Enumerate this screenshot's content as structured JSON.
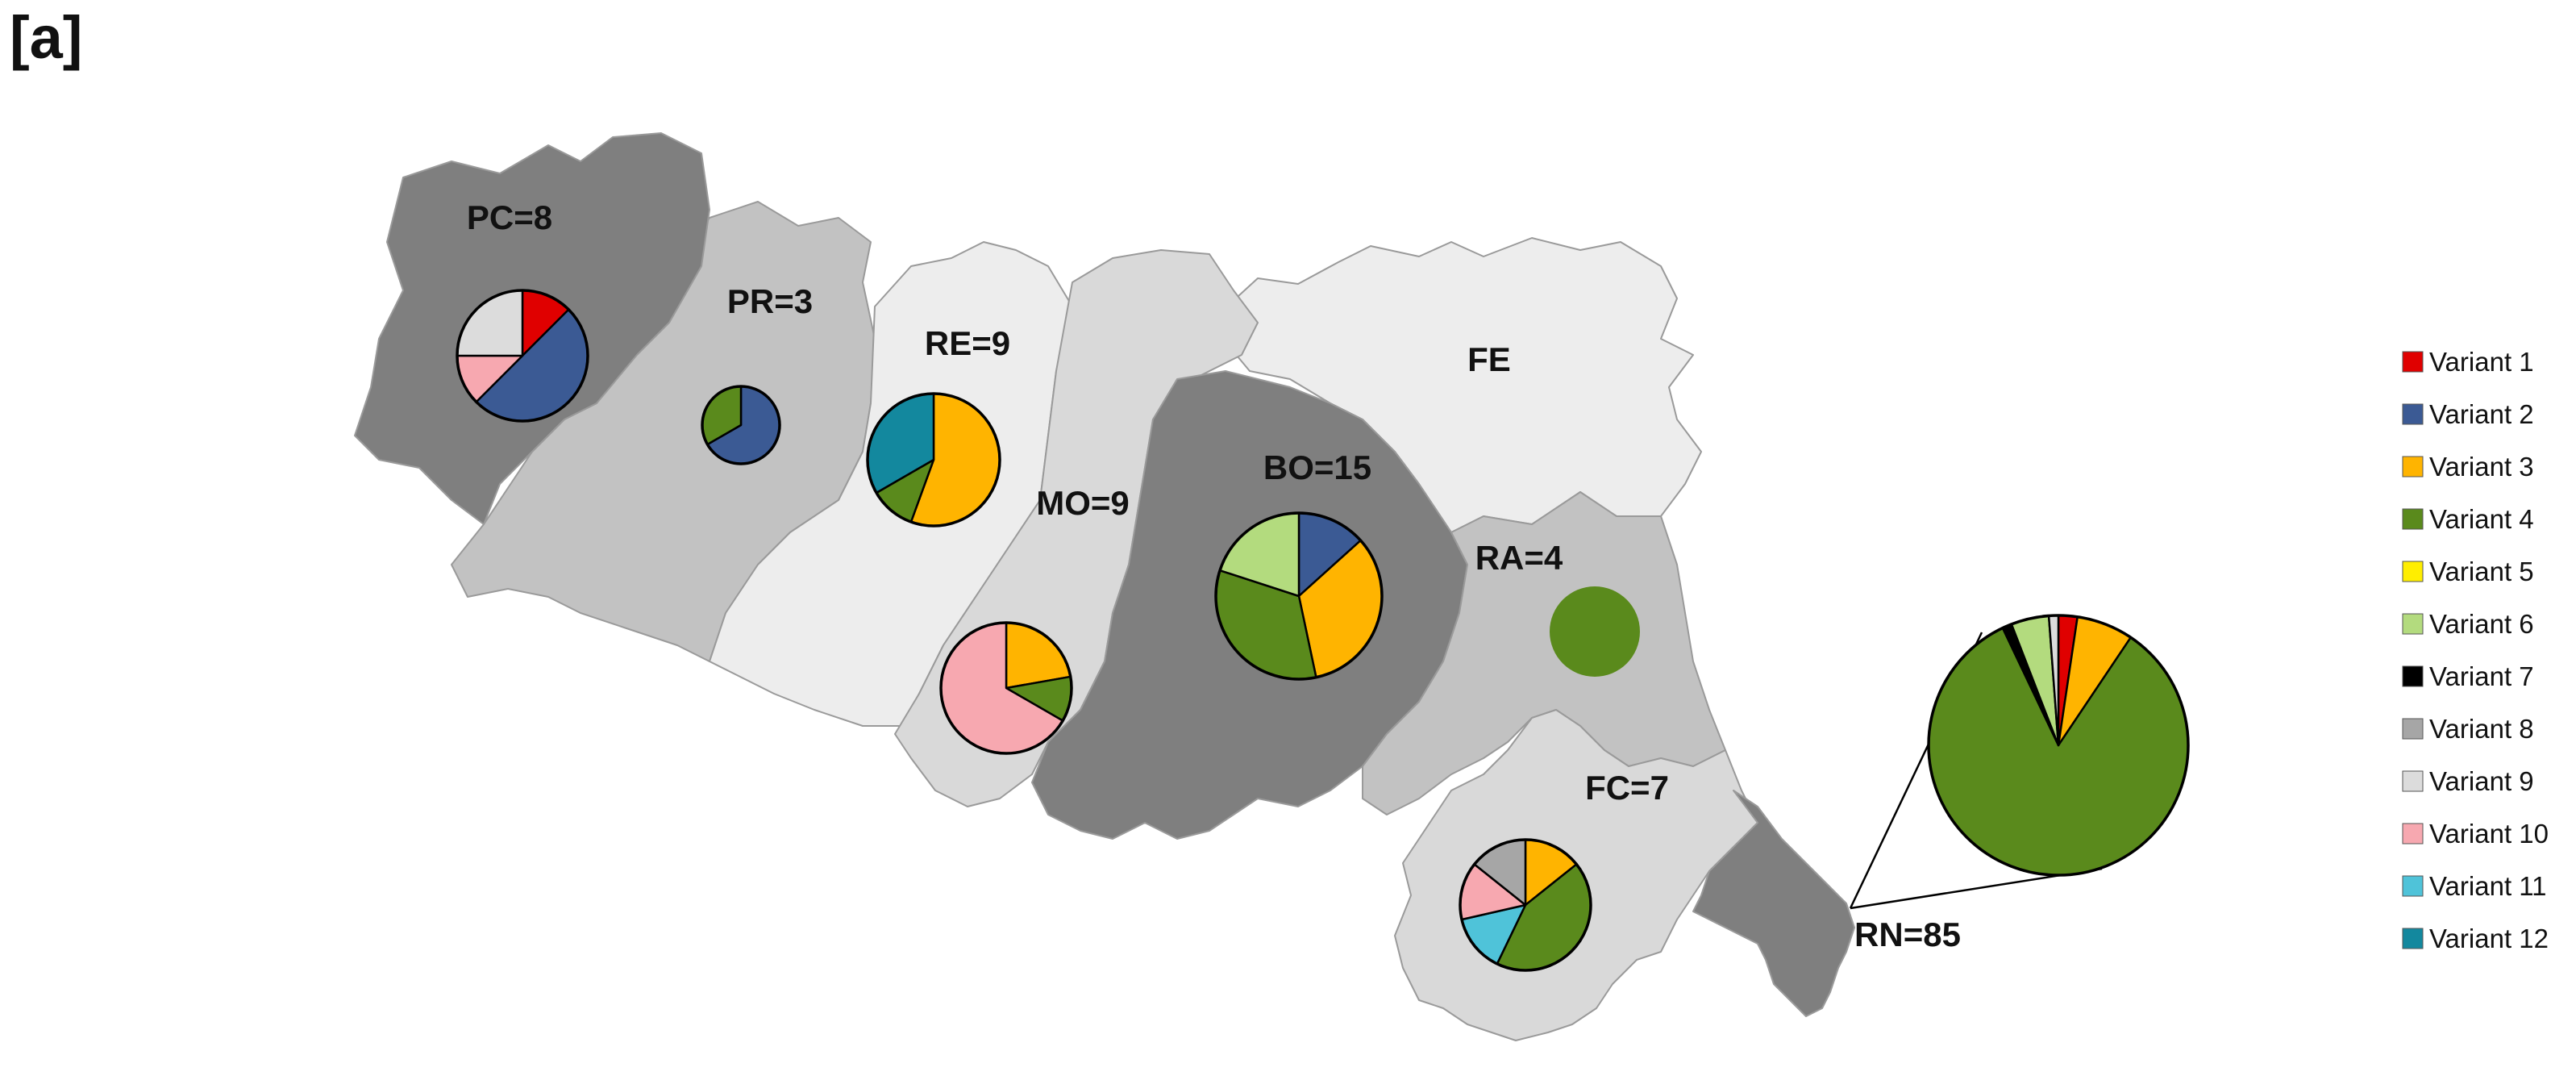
{
  "figure": {
    "panel_label": "[a]"
  },
  "colors": {
    "dark_region": "#7f7f7f",
    "mid_region": "#c2c2c2",
    "light_region": "#d9d9d9",
    "lightest_region": "#ededed"
  },
  "variants": [
    {
      "id": 1,
      "label": "Variant 1",
      "color": "#e00000"
    },
    {
      "id": 2,
      "label": "Variant 2",
      "color": "#3b5a94"
    },
    {
      "id": 3,
      "label": "Variant 3",
      "color": "#ffb400"
    },
    {
      "id": 4,
      "label": "Variant 4",
      "color": "#5a8a1c"
    },
    {
      "id": 5,
      "label": "Variant 5",
      "color": "#ffee00"
    },
    {
      "id": 6,
      "label": "Variant 6",
      "color": "#b3db7e"
    },
    {
      "id": 7,
      "label": "Variant 7",
      "color": "#000000"
    },
    {
      "id": 8,
      "label": "Variant 8",
      "color": "#a6a6a6"
    },
    {
      "id": 9,
      "label": "Variant 9",
      "color": "#dcdcdc"
    },
    {
      "id": 10,
      "label": "Variant 10",
      "color": "#f7a8b0"
    },
    {
      "id": 11,
      "label": "Variant 11",
      "color": "#4fc3d9"
    },
    {
      "id": 12,
      "label": "Variant 12",
      "color": "#13889e"
    }
  ],
  "provinces": [
    {
      "code": "PC",
      "label": "PC=8",
      "shade": "dark_region",
      "composition": [
        {
          "variant": 1,
          "count": 1
        },
        {
          "variant": 2,
          "count": 4
        },
        {
          "variant": 10,
          "count": 1
        },
        {
          "variant": 9,
          "count": 2
        }
      ]
    },
    {
      "code": "PR",
      "label": "PR=3",
      "shade": "mid_region",
      "composition": [
        {
          "variant": 2,
          "count": 2
        },
        {
          "variant": 4,
          "count": 1
        }
      ]
    },
    {
      "code": "RE",
      "label": "RE=9",
      "shade": "lightest_region",
      "composition": [
        {
          "variant": 3,
          "count": 5
        },
        {
          "variant": 4,
          "count": 1
        },
        {
          "variant": 12,
          "count": 3
        }
      ]
    },
    {
      "code": "MO",
      "label": "MO=9",
      "shade": "light_region",
      "composition": [
        {
          "variant": 3,
          "count": 2
        },
        {
          "variant": 4,
          "count": 1
        },
        {
          "variant": 10,
          "count": 6
        }
      ]
    },
    {
      "code": "BO",
      "label": "BO=15",
      "shade": "dark_region",
      "composition": [
        {
          "variant": 2,
          "count": 2
        },
        {
          "variant": 3,
          "count": 5
        },
        {
          "variant": 4,
          "count": 5
        },
        {
          "variant": 6,
          "count": 3
        }
      ]
    },
    {
      "code": "FE",
      "label": "FE",
      "shade": "lightest_region",
      "composition": []
    },
    {
      "code": "RA",
      "label": "RA=4",
      "shade": "mid_region",
      "composition": [
        {
          "variant": 4,
          "count": 4
        }
      ]
    },
    {
      "code": "FC",
      "label": "FC=7",
      "shade": "light_region",
      "composition": [
        {
          "variant": 3,
          "count": 1
        },
        {
          "variant": 4,
          "count": 3
        },
        {
          "variant": 11,
          "count": 1
        },
        {
          "variant": 10,
          "count": 1
        },
        {
          "variant": 8,
          "count": 1
        }
      ]
    },
    {
      "code": "RN",
      "label": "RN=85",
      "shade": "dark_region",
      "composition": [
        {
          "variant": 1,
          "count": 2
        },
        {
          "variant": 3,
          "count": 6
        },
        {
          "variant": 4,
          "count": 71
        },
        {
          "variant": 7,
          "count": 1
        },
        {
          "variant": 6,
          "count": 4
        },
        {
          "variant": 9,
          "count": 1
        }
      ]
    }
  ]
}
